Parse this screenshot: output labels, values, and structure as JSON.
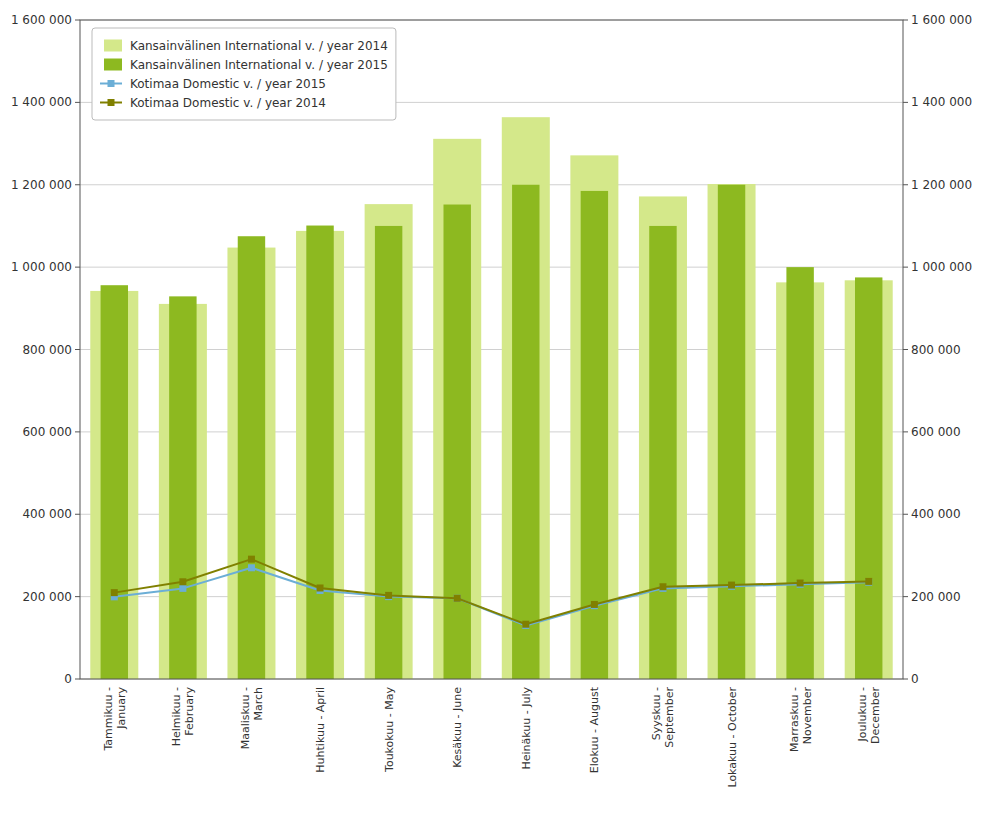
{
  "chart_data": {
    "type": "bar",
    "categories": [
      "Tammikuu -\nJanuary",
      "Helmikuu -\nFebruary",
      "Maaliskuu -\nMarch",
      "Huhtikuu - April",
      "Toukokuu - May",
      "Kesäkuu - June",
      "Heinäkuu - July",
      "Elokuu - August",
      "Syyskuu -\nSeptember",
      "Lokakuu - October",
      "Marraskuu -\nNovember",
      "Joulukuu -\nDecember"
    ],
    "series": [
      {
        "name": "Kansainvälinen International v. / year 2014",
        "type": "bar",
        "color": "#d4e88a",
        "values": [
          942216,
          910726,
          1047485,
          1087961,
          1152964,
          1311475,
          1363997,
          1271345,
          1171613,
          1201756,
          963000,
          968000
        ]
      },
      {
        "name": "Kansainvälinen International v. / year 2015",
        "type": "bar",
        "color": "#8db920",
        "values": [
          956090,
          929000,
          1075000,
          1101000,
          1100000,
          1152000,
          1200000,
          1185000,
          1100000,
          1200000,
          1000000,
          975000
        ]
      },
      {
        "name": "Kotimaa Domestic v. / year 2015",
        "type": "line",
        "color": "#6baed6",
        "marker": "square",
        "values": [
          199507,
          220000,
          270000,
          215000,
          200000,
          196000,
          130000,
          178000,
          220000,
          225000,
          230000,
          235000
        ]
      },
      {
        "name": "Kotimaa Domestic v. / year 2014",
        "type": "line",
        "color": "#808000",
        "marker": "square",
        "values": [
          209713,
          236000,
          291000,
          221000,
          203000,
          196000,
          133000,
          181000,
          224000,
          228000,
          233000,
          237000
        ]
      }
    ],
    "ylim": [
      0,
      1600000
    ],
    "yticks": [
      0,
      {
        "value": 200000,
        "label": "200 000"
      },
      {
        "value": 400000,
        "label": "400 000"
      },
      {
        "value": 600000,
        "label": "600 000"
      },
      {
        "value": 800000,
        "label": "800 000"
      },
      {
        "value": 1000000,
        "label": "1 000 000"
      },
      {
        "value": 1200000,
        "label": "1 200 000"
      },
      {
        "value": 1400000,
        "label": "1 400 000"
      },
      {
        "value": 1600000,
        "label": "1 600 000"
      }
    ],
    "y2lim": [
      0,
      1600000
    ],
    "y2ticks": [
      0,
      {
        "value": 200000,
        "label": "200 000"
      },
      {
        "value": 400000,
        "label": "400 000"
      },
      {
        "value": 600000,
        "label": "600 000"
      },
      {
        "value": 800000,
        "label": "800 000"
      },
      {
        "value": 1000000,
        "label": "1 000 000"
      },
      {
        "value": 1200000,
        "label": "1 200 000"
      },
      {
        "value": 1400000,
        "label": "1 400 000"
      },
      {
        "value": 1600000,
        "label": "1 600 000"
      }
    ],
    "grid": true,
    "legend": "upper left"
  }
}
